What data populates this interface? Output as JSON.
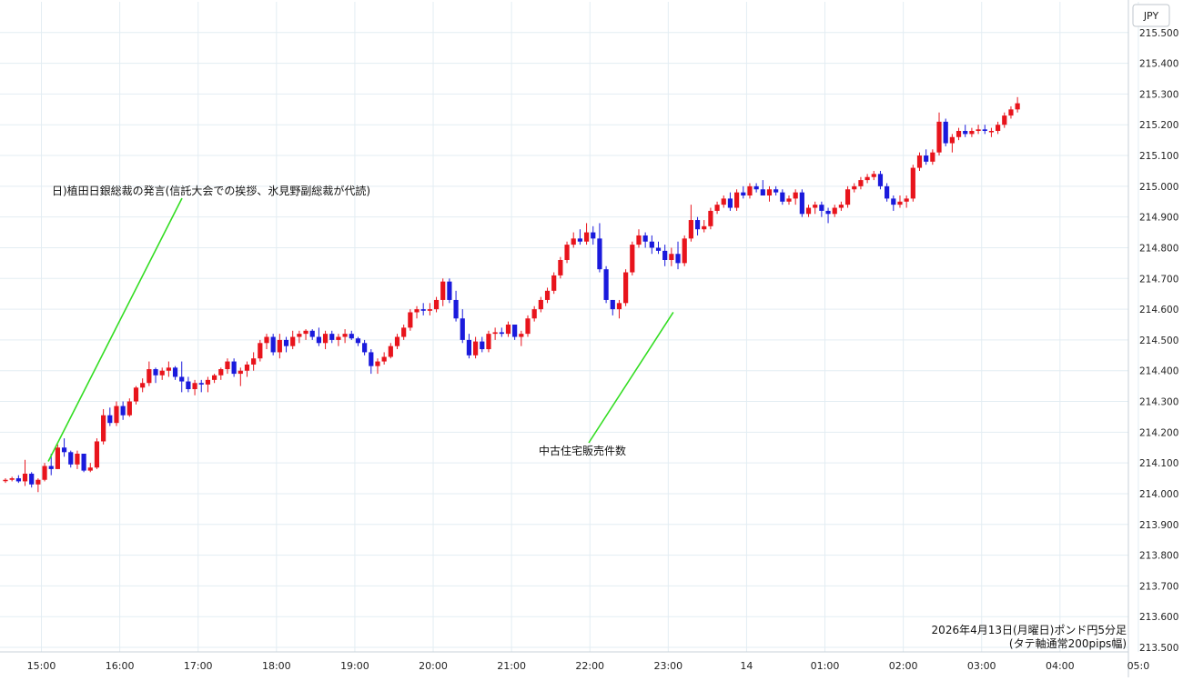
{
  "chart_data": {
    "type": "candlestick",
    "currency_label": "JPY",
    "caption_line1": "2026年4月13日(月曜日)ポンド円5分足",
    "caption_line2": "(タテ軸通常200pips幅)",
    "colors": {
      "up": "#e8141c",
      "down": "#1a1adc",
      "annotation_line": "#33dd22",
      "grid": "#e3edf3"
    },
    "grid": true,
    "ylim": [
      213.5,
      215.6
    ],
    "y_ticks": [
      "213.500",
      "213.600",
      "213.700",
      "213.800",
      "213.900",
      "214.000",
      "214.100",
      "214.200",
      "214.300",
      "214.400",
      "214.500",
      "214.600",
      "214.700",
      "214.800",
      "214.900",
      "215.000",
      "215.100",
      "215.200",
      "215.300",
      "215.400",
      "215.500"
    ],
    "x_ticks": [
      {
        "label": "15:00",
        "index": 3
      },
      {
        "label": "16:00",
        "index": 15
      },
      {
        "label": "17:00",
        "index": 27
      },
      {
        "label": "18:00",
        "index": 39
      },
      {
        "label": "19:00",
        "index": 51
      },
      {
        "label": "20:00",
        "index": 63
      },
      {
        "label": "21:00",
        "index": 75
      },
      {
        "label": "22:00",
        "index": 87
      },
      {
        "label": "23:00",
        "index": 99
      },
      {
        "label": "14",
        "index": 111
      },
      {
        "label": "01:00",
        "index": 123
      },
      {
        "label": "02:00",
        "index": 135
      },
      {
        "label": "03:00",
        "index": 147
      },
      {
        "label": "04:00",
        "index": 159
      },
      {
        "label": "05:0",
        "index": 171
      }
    ],
    "annotations": [
      {
        "text": "日)植田日銀総裁の発言(信託大会での挨拶、氷見野副総裁が代読)",
        "index": 6,
        "price": 214.105
      },
      {
        "text": "中古住宅販売件数",
        "index": 102,
        "price": 214.59
      }
    ],
    "candles": [
      [
        214.045,
        214.05,
        214.035,
        214.045
      ],
      [
        214.045,
        214.055,
        214.04,
        214.05
      ],
      [
        214.05,
        214.06,
        214.035,
        214.04
      ],
      [
        214.04,
        214.11,
        214.025,
        214.065
      ],
      [
        214.065,
        214.07,
        214.02,
        214.03
      ],
      [
        214.03,
        214.05,
        214.005,
        214.045
      ],
      [
        214.045,
        214.1,
        214.04,
        214.09
      ],
      [
        214.09,
        214.13,
        214.06,
        214.08
      ],
      [
        214.08,
        214.16,
        214.08,
        214.15
      ],
      [
        214.15,
        214.18,
        214.12,
        214.135
      ],
      [
        214.135,
        214.14,
        214.085,
        214.095
      ],
      [
        214.095,
        214.14,
        214.08,
        214.13
      ],
      [
        214.13,
        214.13,
        214.07,
        214.075
      ],
      [
        214.075,
        214.1,
        214.07,
        214.085
      ],
      [
        214.085,
        214.18,
        214.08,
        214.17
      ],
      [
        214.17,
        214.275,
        214.16,
        214.255
      ],
      [
        214.255,
        214.28,
        214.22,
        214.23
      ],
      [
        214.23,
        214.3,
        214.22,
        214.285
      ],
      [
        214.285,
        214.3,
        214.24,
        214.255
      ],
      [
        214.255,
        214.31,
        214.25,
        214.3
      ],
      [
        214.3,
        214.35,
        214.29,
        214.345
      ],
      [
        214.345,
        214.375,
        214.33,
        214.36
      ],
      [
        214.36,
        214.43,
        214.35,
        214.405
      ],
      [
        214.405,
        214.41,
        214.36,
        214.385
      ],
      [
        214.385,
        214.41,
        214.37,
        214.4
      ],
      [
        214.4,
        214.43,
        214.38,
        214.41
      ],
      [
        214.41,
        214.415,
        214.37,
        214.38
      ],
      [
        214.38,
        214.43,
        214.33,
        214.365
      ],
      [
        214.365,
        214.38,
        214.33,
        214.34
      ],
      [
        214.34,
        214.37,
        214.32,
        214.36
      ],
      [
        214.36,
        214.37,
        214.33,
        214.355
      ],
      [
        214.355,
        214.38,
        214.33,
        214.37
      ],
      [
        214.37,
        214.39,
        214.36,
        214.385
      ],
      [
        214.385,
        214.41,
        214.37,
        214.405
      ],
      [
        214.405,
        214.44,
        214.39,
        214.43
      ],
      [
        214.43,
        214.44,
        214.38,
        214.39
      ],
      [
        214.39,
        214.41,
        214.35,
        214.4
      ],
      [
        214.4,
        214.43,
        214.38,
        214.42
      ],
      [
        214.42,
        214.46,
        214.4,
        214.44
      ],
      [
        214.44,
        214.5,
        214.43,
        214.49
      ],
      [
        214.49,
        214.52,
        214.47,
        214.51
      ],
      [
        214.51,
        214.52,
        214.45,
        214.46
      ],
      [
        214.46,
        214.52,
        214.44,
        214.5
      ],
      [
        214.5,
        214.51,
        214.46,
        214.48
      ],
      [
        214.48,
        214.53,
        214.47,
        214.51
      ],
      [
        214.51,
        214.53,
        214.49,
        214.52
      ],
      [
        214.52,
        214.535,
        214.5,
        214.53
      ],
      [
        214.53,
        214.535,
        214.5,
        214.51
      ],
      [
        214.51,
        214.54,
        214.48,
        214.49
      ],
      [
        214.49,
        214.53,
        214.47,
        214.52
      ],
      [
        214.52,
        214.53,
        214.49,
        214.5
      ],
      [
        214.5,
        214.52,
        214.48,
        214.51
      ],
      [
        214.51,
        214.535,
        214.49,
        214.52
      ],
      [
        214.52,
        214.53,
        214.5,
        214.505
      ],
      [
        214.505,
        214.51,
        214.48,
        214.49
      ],
      [
        214.49,
        214.5,
        214.45,
        214.46
      ],
      [
        214.46,
        214.47,
        214.39,
        214.415
      ],
      [
        214.415,
        214.44,
        214.39,
        214.43
      ],
      [
        214.43,
        214.46,
        214.42,
        214.445
      ],
      [
        214.445,
        214.49,
        214.44,
        214.48
      ],
      [
        214.48,
        214.52,
        214.47,
        214.51
      ],
      [
        214.51,
        214.55,
        214.5,
        214.54
      ],
      [
        214.54,
        214.6,
        214.53,
        214.59
      ],
      [
        214.59,
        214.61,
        214.57,
        214.6
      ],
      [
        214.6,
        214.62,
        214.58,
        214.595
      ],
      [
        214.595,
        214.62,
        214.58,
        214.6
      ],
      [
        214.6,
        214.64,
        214.59,
        214.63
      ],
      [
        214.63,
        214.7,
        214.61,
        214.69
      ],
      [
        214.69,
        214.7,
        214.62,
        214.63
      ],
      [
        214.63,
        214.66,
        214.56,
        214.57
      ],
      [
        214.57,
        214.6,
        214.49,
        214.5
      ],
      [
        214.5,
        214.52,
        214.44,
        214.45
      ],
      [
        214.45,
        214.51,
        214.44,
        214.495
      ],
      [
        214.495,
        214.51,
        214.46,
        214.47
      ],
      [
        214.47,
        214.53,
        214.46,
        214.52
      ],
      [
        214.52,
        214.54,
        214.5,
        214.525
      ],
      [
        214.525,
        214.54,
        214.51,
        214.52
      ],
      [
        214.52,
        214.56,
        214.51,
        214.55
      ],
      [
        214.55,
        214.55,
        214.5,
        214.51
      ],
      [
        214.51,
        214.53,
        214.48,
        214.52
      ],
      [
        214.52,
        214.58,
        214.51,
        214.57
      ],
      [
        214.57,
        214.61,
        214.56,
        214.6
      ],
      [
        214.6,
        214.64,
        214.59,
        214.63
      ],
      [
        214.63,
        214.67,
        214.62,
        214.66
      ],
      [
        214.66,
        214.72,
        214.65,
        214.71
      ],
      [
        214.71,
        214.77,
        214.7,
        214.76
      ],
      [
        214.76,
        214.82,
        214.75,
        214.81
      ],
      [
        214.81,
        214.85,
        214.8,
        214.83
      ],
      [
        214.83,
        214.86,
        214.81,
        214.82
      ],
      [
        214.82,
        214.88,
        214.81,
        214.85
      ],
      [
        214.85,
        214.87,
        214.81,
        214.83
      ],
      [
        214.83,
        214.88,
        214.72,
        214.73
      ],
      [
        214.73,
        214.74,
        214.62,
        214.63
      ],
      [
        214.63,
        214.63,
        214.58,
        214.6
      ],
      [
        214.6,
        214.63,
        214.57,
        214.62
      ],
      [
        214.62,
        214.73,
        214.61,
        214.72
      ],
      [
        214.72,
        214.82,
        214.71,
        214.81
      ],
      [
        214.81,
        214.86,
        214.8,
        214.84
      ],
      [
        214.84,
        214.85,
        214.8,
        214.82
      ],
      [
        214.82,
        214.84,
        214.78,
        214.8
      ],
      [
        214.8,
        214.82,
        214.78,
        214.79
      ],
      [
        214.79,
        214.81,
        214.74,
        214.76
      ],
      [
        214.76,
        214.8,
        214.74,
        214.78
      ],
      [
        214.78,
        214.82,
        214.73,
        214.75
      ],
      [
        214.75,
        214.84,
        214.74,
        214.83
      ],
      [
        214.83,
        214.94,
        214.82,
        214.89
      ],
      [
        214.89,
        214.9,
        214.84,
        214.86
      ],
      [
        214.86,
        214.89,
        214.85,
        214.87
      ],
      [
        214.87,
        214.93,
        214.86,
        214.92
      ],
      [
        214.92,
        214.95,
        214.91,
        214.94
      ],
      [
        214.94,
        214.97,
        214.93,
        214.96
      ],
      [
        214.96,
        214.98,
        214.92,
        214.93
      ],
      [
        214.93,
        214.99,
        214.92,
        214.98
      ],
      [
        214.98,
        215.0,
        214.96,
        214.97
      ],
      [
        214.97,
        215.01,
        214.96,
        215.0
      ],
      [
        215.0,
        215.01,
        214.98,
        214.99
      ],
      [
        214.99,
        215.02,
        214.98,
        214.97
      ],
      [
        214.97,
        215.0,
        214.95,
        214.99
      ],
      [
        214.99,
        215.0,
        214.97,
        214.98
      ],
      [
        214.98,
        214.99,
        214.94,
        214.95
      ],
      [
        214.95,
        214.97,
        214.94,
        214.96
      ],
      [
        214.96,
        214.99,
        214.94,
        214.98
      ],
      [
        214.98,
        214.99,
        214.9,
        214.91
      ],
      [
        214.91,
        214.94,
        214.9,
        214.93
      ],
      [
        214.93,
        214.95,
        214.91,
        214.94
      ],
      [
        214.94,
        214.95,
        214.9,
        214.92
      ],
      [
        214.92,
        214.93,
        214.88,
        214.91
      ],
      [
        214.91,
        214.94,
        214.9,
        214.93
      ],
      [
        214.93,
        214.95,
        214.92,
        214.94
      ],
      [
        214.94,
        215.0,
        214.93,
        214.99
      ],
      [
        214.99,
        215.01,
        214.98,
        215.0
      ],
      [
        215.0,
        215.03,
        214.99,
        215.02
      ],
      [
        215.02,
        215.04,
        215.01,
        215.03
      ],
      [
        215.03,
        215.05,
        215.02,
        215.04
      ],
      [
        215.04,
        215.05,
        214.99,
        215.0
      ],
      [
        215.0,
        215.01,
        214.95,
        214.96
      ],
      [
        214.96,
        214.97,
        214.92,
        214.94
      ],
      [
        214.94,
        214.97,
        214.93,
        214.95
      ],
      [
        214.95,
        214.97,
        214.93,
        214.96
      ],
      [
        214.96,
        215.07,
        214.95,
        215.06
      ],
      [
        215.06,
        215.11,
        215.05,
        215.1
      ],
      [
        215.1,
        215.12,
        215.07,
        215.08
      ],
      [
        215.08,
        215.12,
        215.07,
        215.11
      ],
      [
        215.11,
        215.24,
        215.1,
        215.21
      ],
      [
        215.21,
        215.22,
        215.13,
        215.14
      ],
      [
        215.14,
        215.17,
        215.11,
        215.16
      ],
      [
        215.16,
        215.19,
        215.15,
        215.18
      ],
      [
        215.18,
        215.2,
        215.16,
        215.17
      ],
      [
        215.17,
        215.19,
        215.16,
        215.18
      ],
      [
        215.18,
        215.2,
        215.17,
        215.185
      ],
      [
        215.185,
        215.2,
        215.17,
        215.18
      ],
      [
        215.18,
        215.19,
        215.16,
        215.18
      ],
      [
        215.18,
        215.21,
        215.17,
        215.2
      ],
      [
        215.2,
        215.24,
        215.19,
        215.23
      ],
      [
        215.23,
        215.26,
        215.22,
        215.25
      ],
      [
        215.25,
        215.29,
        215.24,
        215.27
      ]
    ]
  }
}
